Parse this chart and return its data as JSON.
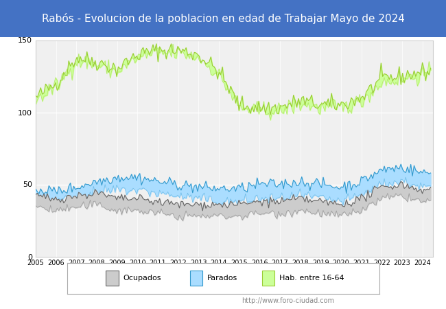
{
  "title": "Rabós - Evolucion de la poblacion en edad de Trabajar Mayo de 2024",
  "title_bg_color": "#4472c4",
  "title_text_color": "#ffffff",
  "title_fontsize": 11,
  "ylim": [
    0,
    150
  ],
  "yticks": [
    0,
    50,
    100,
    150
  ],
  "xlabel": "",
  "ylabel": "",
  "legend_labels": [
    "Ocupados",
    "Parados",
    "Hab. entre 16-64"
  ],
  "watermark": "http://www.foro-ciudad.com",
  "plot_bg_color": "#f0f0f0",
  "grid_color": "#ffffff",
  "years": [
    2005,
    2006,
    2007,
    2008,
    2009,
    2010,
    2011,
    2012,
    2013,
    2014,
    2015,
    2016,
    2017,
    2018,
    2019,
    2020,
    2021,
    2022,
    2023,
    2024
  ],
  "hab_upper": [
    110,
    120,
    138,
    135,
    130,
    140,
    143,
    143,
    140,
    128,
    105,
    103,
    103,
    108,
    105,
    105,
    110,
    123,
    125,
    128
  ],
  "hab_lower": [
    108,
    118,
    136,
    133,
    128,
    138,
    141,
    141,
    138,
    126,
    103,
    101,
    101,
    106,
    103,
    103,
    108,
    121,
    123,
    126
  ],
  "parados_upper": [
    47,
    45,
    48,
    52,
    55,
    55,
    52,
    50,
    48,
    47,
    47,
    50,
    50,
    52,
    50,
    48,
    52,
    60,
    62,
    58
  ],
  "parados_lower": [
    40,
    38,
    40,
    44,
    46,
    46,
    44,
    42,
    40,
    38,
    38,
    40,
    40,
    42,
    40,
    38,
    42,
    50,
    52,
    48
  ],
  "ocupados_upper": [
    42,
    40,
    42,
    44,
    40,
    40,
    38,
    36,
    36,
    36,
    36,
    38,
    38,
    40,
    38,
    36,
    40,
    48,
    50,
    46
  ],
  "ocupados_lower": [
    35,
    32,
    34,
    36,
    32,
    32,
    30,
    28,
    28,
    28,
    28,
    30,
    30,
    32,
    30,
    28,
    32,
    40,
    42,
    38
  ],
  "hab_color": "#ccff99",
  "hab_line_color": "#99cc33",
  "parados_color": "#aaddff",
  "parados_line_color": "#3399cc",
  "ocupados_color": "#cccccc",
  "ocupados_line_color": "#666666"
}
